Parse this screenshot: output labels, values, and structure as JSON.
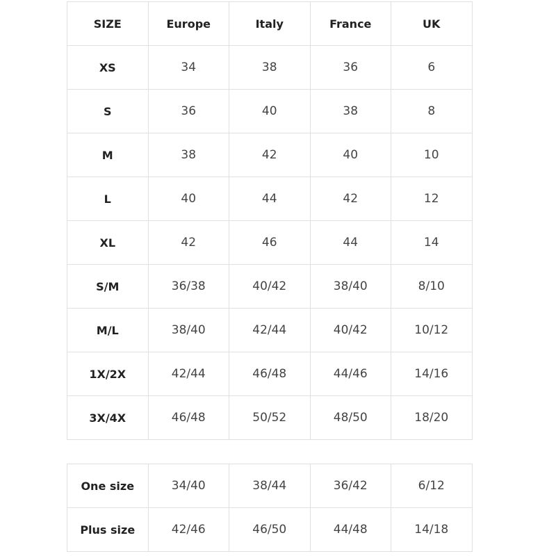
{
  "size_table": {
    "header": [
      "SIZE",
      "Europe",
      "Italy",
      "France",
      "UK"
    ],
    "rows": [
      [
        "XS",
        "34",
        "38",
        "36",
        "6"
      ],
      [
        "S",
        "36",
        "40",
        "38",
        "8"
      ],
      [
        "M",
        "38",
        "42",
        "40",
        "10"
      ],
      [
        "L",
        "40",
        "44",
        "42",
        "12"
      ],
      [
        "XL",
        "42",
        "46",
        "44",
        "14"
      ],
      [
        "S/M",
        "36/38",
        "40/42",
        "38/40",
        "8/10"
      ],
      [
        "M/L",
        "38/40",
        "42/44",
        "40/42",
        "10/12"
      ],
      [
        "1X/2X",
        "42/44",
        "46/48",
        "44/46",
        "14/16"
      ],
      [
        "3X/4X",
        "46/48",
        "50/52",
        "48/50",
        "18/20"
      ]
    ]
  },
  "extra_table": {
    "rows": [
      [
        "One size",
        "34/40",
        "38/44",
        "36/42",
        "6/12"
      ],
      [
        "Plus size",
        "42/46",
        "46/50",
        "44/48",
        "14/18"
      ]
    ]
  }
}
